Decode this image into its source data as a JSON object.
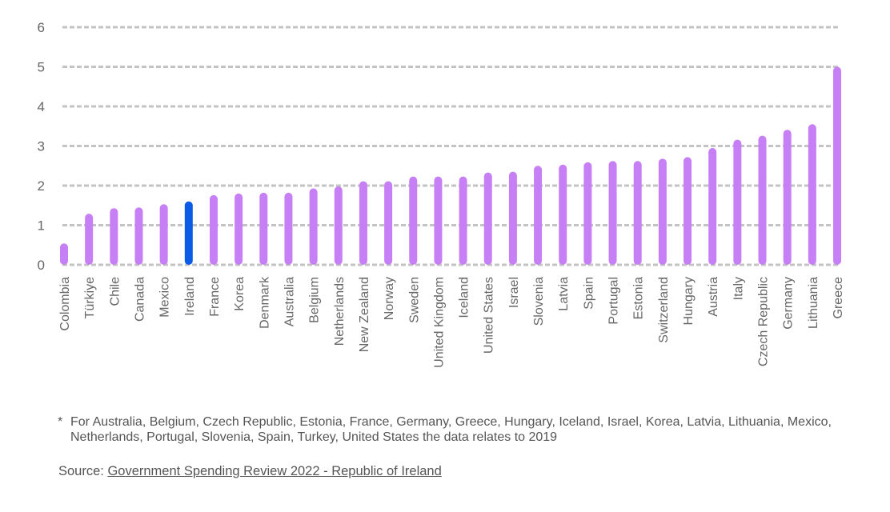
{
  "chart_data": {
    "type": "bar",
    "title": "",
    "xlabel": "",
    "ylabel": "",
    "ylim": [
      0,
      6
    ],
    "yticks": [
      "0",
      "1",
      "2",
      "3",
      "4",
      "5",
      "6"
    ],
    "grid": true,
    "highlight_category": "Ireland",
    "colors": {
      "default": "#c77ff5",
      "highlight": "#0a5ce6",
      "grid": "#c3c3c3"
    },
    "categories": [
      "Colombia",
      "Türkiye",
      "Chile",
      "Canada",
      "Mexico",
      "Ireland",
      "France",
      "Korea",
      "Denmark",
      "Australia",
      "Belgium",
      "Netherlands",
      "New Zealand",
      "Norway",
      "Sweden",
      "United Kingdom",
      "Iceland",
      "United States",
      "Israel",
      "Slovenia",
      "Latvia",
      "Spain",
      "Portugal",
      "Estonia",
      "Switzerland",
      "Hungary",
      "Austria",
      "Italy",
      "Czech Republic",
      "Germany",
      "Lithuania",
      "Greece"
    ],
    "values": [
      0.54,
      1.29,
      1.43,
      1.45,
      1.53,
      1.6,
      1.76,
      1.8,
      1.82,
      1.82,
      1.93,
      1.98,
      2.11,
      2.11,
      2.23,
      2.23,
      2.23,
      2.33,
      2.35,
      2.5,
      2.53,
      2.59,
      2.62,
      2.62,
      2.68,
      2.72,
      2.95,
      3.16,
      3.26,
      3.41,
      3.55,
      5.0
    ]
  },
  "footnote": {
    "marker": "*",
    "text": "For Australia, Belgium, Czech Republic, Estonia, France, Germany, Greece, Hungary, Iceland, Israel, Korea, Latvia, Lithuania, Mexico, Netherlands, Portugal, Slovenia, Spain, Turkey, United States the data relates to 2019"
  },
  "source": {
    "label": "Source: ",
    "link_text": "Government Spending Review 2022 - Republic of Ireland"
  }
}
